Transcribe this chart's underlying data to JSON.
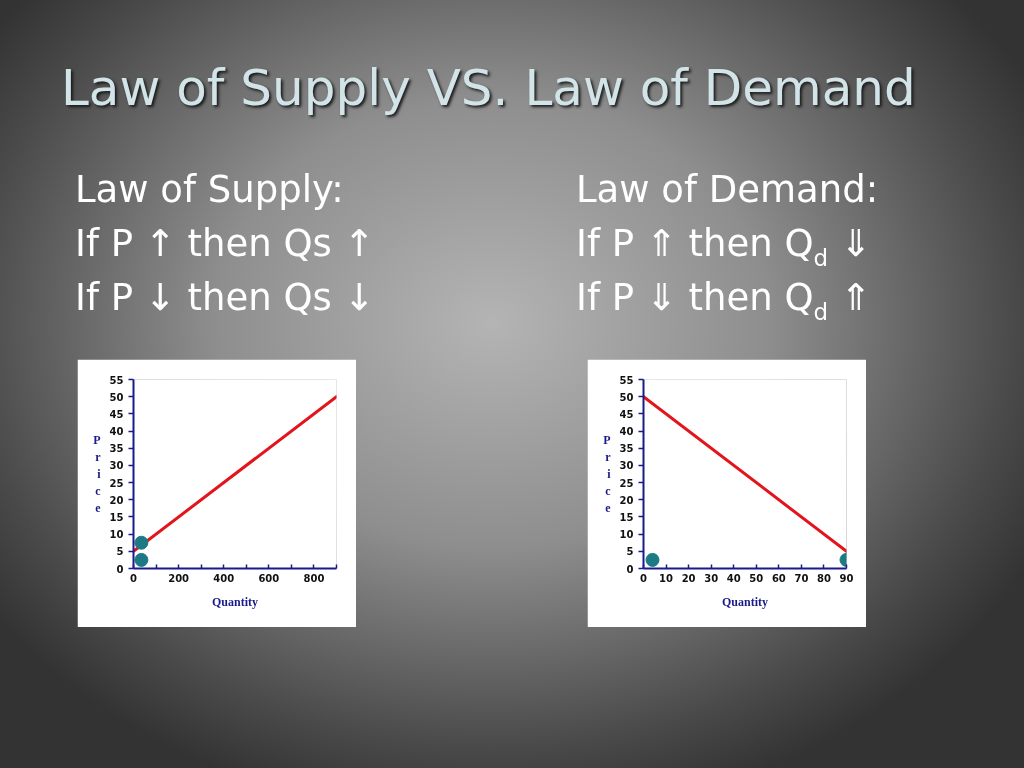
{
  "chart_data": [
    {
      "type": "line",
      "title": "Law of Supply VS. Law of Demand",
      "subtitle": "Law of Supply:",
      "annotations": [
        "If P ↑ then Qs ↑",
        "If P ↓ then Qs ↓"
      ],
      "xlabel": "Quantity",
      "ylabel": "Price",
      "xlim": [
        0,
        900
      ],
      "ylim": [
        0,
        55
      ],
      "xticks": [
        0,
        {
          "value": 100,
          "label": null
        },
        200,
        {
          "value": 300,
          "label": null
        },
        400,
        {
          "value": 500,
          "label": null
        },
        600,
        {
          "value": 700,
          "label": null
        },
        800,
        {
          "value": 900,
          "label": null
        }
      ],
      "yticks": [
        0,
        5,
        10,
        15,
        20,
        25,
        30,
        35,
        40,
        45,
        50,
        55
      ],
      "grid": false,
      "series": [
        {
          "color": "#e3141b",
          "x": [
            0,
            900
          ],
          "values": [
            5,
            50
          ]
        },
        {
          "type": "scatter",
          "color": "#1d7a84",
          "marker": "circle",
          "x": [
            35,
            35
          ],
          "values": [
            7.5,
            2.5
          ]
        }
      ]
    },
    {
      "type": "line",
      "subtitle": "Law of Demand:",
      "annotations": [
        "If P ⇑ then Q$_{d}$ ⇓",
        "If P ⇓ then Q$_{d}$ ⇑"
      ],
      "xlabel": "Quantity",
      "ylabel": "Price",
      "xlim": [
        0,
        90
      ],
      "ylim": [
        0,
        55
      ],
      "xticks": [
        0,
        10,
        20,
        30,
        40,
        50,
        60,
        70,
        80,
        90
      ],
      "yticks": [
        0,
        5,
        10,
        15,
        20,
        25,
        30,
        35,
        40,
        45,
        50,
        55
      ],
      "grid": false,
      "series": [
        {
          "color": "#e3141b",
          "x": [
            0,
            90
          ],
          "values": [
            50,
            5
          ]
        },
        {
          "type": "scatter",
          "color": "#1d7a84",
          "marker": "circle",
          "x": [
            4,
            90
          ],
          "values": [
            2.5,
            2.5
          ]
        }
      ]
    }
  ]
}
